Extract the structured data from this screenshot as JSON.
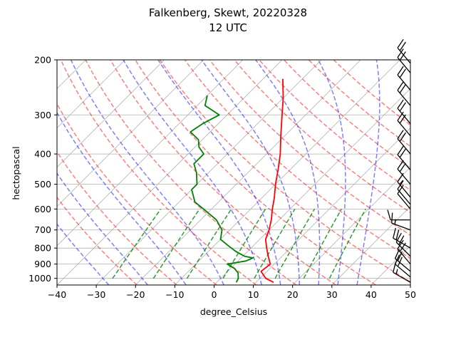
{
  "chart_data": {
    "type": "line",
    "title_line1": "Falkenberg, Skewt, 20220328",
    "title_line2": "12 UTC",
    "xlabel": "degree_Celsius",
    "ylabel": "hectopascal",
    "xlim": [
      -40,
      50
    ],
    "ylim": [
      1050,
      200
    ],
    "y_scale": "log",
    "x_ticks": [
      -40,
      -30,
      -20,
      -10,
      0,
      10,
      20,
      30,
      40,
      50
    ],
    "y_ticks": [
      1000,
      900,
      800,
      700,
      600,
      500,
      400,
      300,
      200
    ],
    "grid": true,
    "skew": 45,
    "series": [
      {
        "role": "temperature",
        "color": "#ff0000",
        "points": [
          [
            1030,
            14.5
          ],
          [
            1000,
            11.5
          ],
          [
            950,
            8.5
          ],
          [
            900,
            9
          ],
          [
            850,
            6.5
          ],
          [
            800,
            4
          ],
          [
            750,
            1.5
          ],
          [
            700,
            0
          ],
          [
            650,
            -2
          ],
          [
            600,
            -4.5
          ],
          [
            550,
            -7
          ],
          [
            500,
            -10
          ],
          [
            450,
            -13
          ],
          [
            400,
            -16.5
          ],
          [
            350,
            -21
          ],
          [
            300,
            -26
          ],
          [
            265,
            -30
          ],
          [
            230,
            -35
          ]
        ]
      },
      {
        "role": "dewpoint",
        "color": "#008000",
        "points": [
          [
            1030,
            5
          ],
          [
            1000,
            4.5
          ],
          [
            960,
            3
          ],
          [
            930,
            1
          ],
          [
            900,
            -2
          ],
          [
            880,
            2
          ],
          [
            860,
            3
          ],
          [
            850,
            0.5
          ],
          [
            820,
            -3
          ],
          [
            790,
            -6
          ],
          [
            750,
            -10
          ],
          [
            700,
            -12
          ],
          [
            650,
            -16
          ],
          [
            600,
            -22
          ],
          [
            570,
            -26
          ],
          [
            520,
            -30
          ],
          [
            500,
            -30
          ],
          [
            460,
            -33
          ],
          [
            430,
            -36
          ],
          [
            400,
            -36
          ],
          [
            380,
            -39
          ],
          [
            360,
            -41
          ],
          [
            340,
            -45
          ],
          [
            320,
            -44
          ],
          [
            300,
            -42
          ],
          [
            280,
            -48
          ],
          [
            260,
            -50
          ]
        ]
      }
    ],
    "reference_lines": {
      "dry_adiabats": {
        "color": "#ff0000",
        "style": "dashed",
        "theta_K": [
          250,
          260,
          270,
          280,
          290,
          300,
          310,
          320,
          330,
          340,
          350,
          360,
          370,
          380,
          390
        ]
      },
      "moist_adiabats": {
        "color": "#0000ff",
        "style": "dashed",
        "t0_C": [
          -30,
          -20,
          -10,
          0,
          10,
          15,
          20,
          25,
          30,
          35
        ]
      },
      "mixing_ratio": {
        "color": "#008000",
        "style": "dashed",
        "p_range": [
          1000,
          600
        ],
        "w_g_per_kg": [
          0.4,
          1,
          2,
          4,
          7,
          10,
          16,
          24
        ]
      }
    },
    "wind_barbs": {
      "color": "#000000",
      "levels": [
        {
          "p": 1030,
          "speed_kt": 15,
          "dir": 300
        },
        {
          "p": 990,
          "speed_kt": 20,
          "dir": 310
        },
        {
          "p": 950,
          "speed_kt": 20,
          "dir": 310
        },
        {
          "p": 900,
          "speed_kt": 20,
          "dir": 320
        },
        {
          "p": 850,
          "speed_kt": 20,
          "dir": 315
        },
        {
          "p": 800,
          "speed_kt": 20,
          "dir": 300
        },
        {
          "p": 700,
          "speed_kt": 15,
          "dir": 290
        },
        {
          "p": 650,
          "speed_kt": 10,
          "dir": 270
        },
        {
          "p": 600,
          "speed_kt": 10,
          "dir": 320
        },
        {
          "p": 580,
          "speed_kt": 10,
          "dir": 320
        },
        {
          "p": 550,
          "speed_kt": 15,
          "dir": 320
        },
        {
          "p": 500,
          "speed_kt": 20,
          "dir": 320
        },
        {
          "p": 450,
          "speed_kt": 20,
          "dir": 320
        },
        {
          "p": 400,
          "speed_kt": 20,
          "dir": 320
        },
        {
          "p": 350,
          "speed_kt": 20,
          "dir": 320
        },
        {
          "p": 320,
          "speed_kt": 20,
          "dir": 320
        },
        {
          "p": 280,
          "speed_kt": 20,
          "dir": 320
        },
        {
          "p": 250,
          "speed_kt": 20,
          "dir": 320
        },
        {
          "p": 220,
          "speed_kt": 20,
          "dir": 320
        },
        {
          "p": 205,
          "speed_kt": 20,
          "dir": 320
        }
      ]
    }
  }
}
